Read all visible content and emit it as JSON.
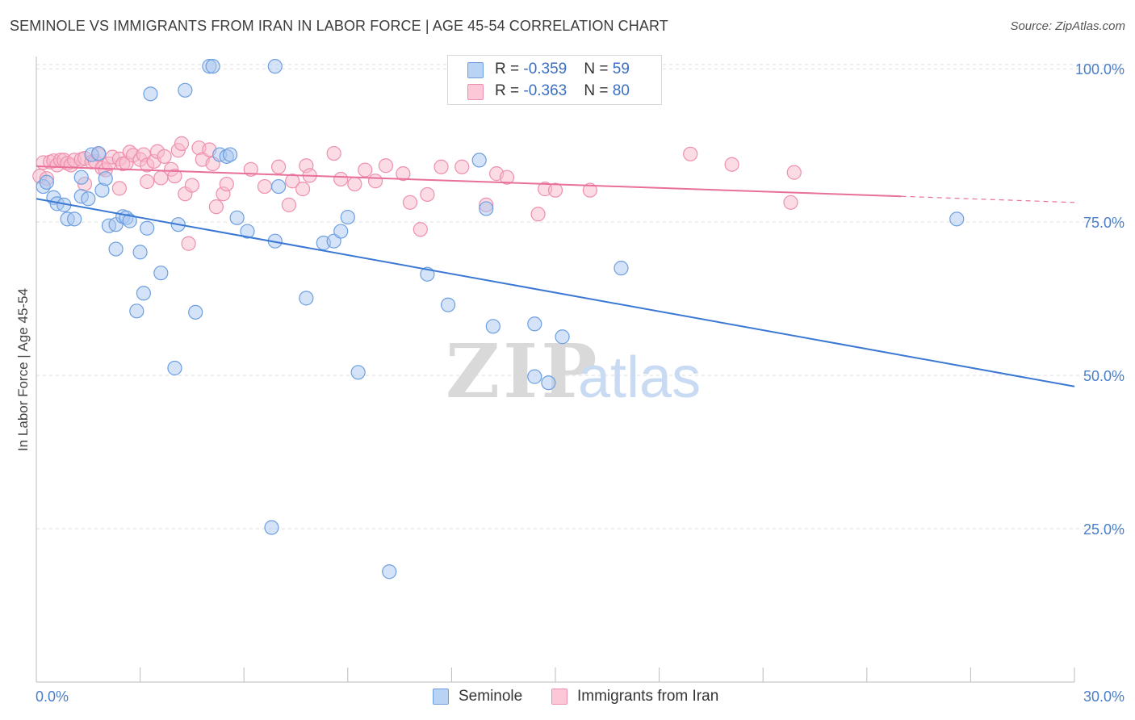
{
  "header": {
    "title": "SEMINOLE VS IMMIGRANTS FROM IRAN IN LABOR FORCE | AGE 45-54 CORRELATION CHART",
    "source": "Source: ZipAtlas.com"
  },
  "watermark": {
    "zip": "ZIP",
    "atlas": "atlas"
  },
  "legend": {
    "items": [
      {
        "r_label": "R = ",
        "r_value": "-0.359",
        "n_label": "N = ",
        "n_value": "59"
      },
      {
        "r_label": "R = ",
        "r_value": "-0.363",
        "n_label": "N = ",
        "n_value": "80"
      }
    ]
  },
  "colors": {
    "seminole_fill": "#a9c8f0",
    "seminole_stroke": "#6d9fe0",
    "seminole_line": "#3a78d4",
    "iran_fill": "#f7b9cc",
    "iran_stroke": "#ee8fae",
    "iran_line": "#e8709a",
    "tick_text": "#4a7fc8",
    "grid": "#dedede"
  },
  "chart_data": {
    "type": "scatter",
    "title": "SEMINOLE VS IMMIGRANTS FROM IRAN IN LABOR FORCE | AGE 45-54 CORRELATION CHART",
    "ylabel": "In Labor Force | Age 45-54",
    "xlim": [
      0,
      30
    ],
    "ylim": [
      0,
      102
    ],
    "x_ticks": [
      0,
      30
    ],
    "x_tick_labels": [
      "0.0%",
      "30.0%"
    ],
    "y_ticks": [
      25,
      50,
      75,
      100
    ],
    "y_tick_labels": [
      "25.0%",
      "50.0%",
      "75.0%",
      "100.0%"
    ],
    "grid": true,
    "legend_position": "top-center",
    "series": [
      {
        "name": "Seminole",
        "r": -0.359,
        "n": 59,
        "trend": {
          "x": [
            0,
            30
          ],
          "y": [
            78.8,
            48.2
          ]
        },
        "points": [
          [
            0.2,
            80.8
          ],
          [
            0.3,
            81.5
          ],
          [
            0.5,
            79.0
          ],
          [
            0.6,
            78.0
          ],
          [
            0.8,
            77.8
          ],
          [
            0.9,
            75.5
          ],
          [
            1.1,
            75.5
          ],
          [
            1.3,
            82.3
          ],
          [
            1.3,
            79.2
          ],
          [
            1.5,
            78.8
          ],
          [
            1.6,
            86.0
          ],
          [
            1.8,
            86.2
          ],
          [
            1.9,
            80.2
          ],
          [
            2.0,
            82.1
          ],
          [
            2.1,
            74.4
          ],
          [
            2.3,
            74.6
          ],
          [
            2.3,
            70.6
          ],
          [
            2.5,
            75.9
          ],
          [
            2.6,
            75.7
          ],
          [
            2.7,
            75.2
          ],
          [
            2.9,
            60.5
          ],
          [
            3.0,
            70.1
          ],
          [
            3.1,
            63.4
          ],
          [
            3.2,
            74.0
          ],
          [
            3.3,
            95.9
          ],
          [
            3.6,
            66.7
          ],
          [
            4.0,
            51.2
          ],
          [
            4.1,
            74.6
          ],
          [
            4.3,
            96.5
          ],
          [
            4.6,
            60.3
          ],
          [
            5.0,
            100.4
          ],
          [
            5.1,
            100.4
          ],
          [
            5.3,
            86.0
          ],
          [
            5.5,
            85.7
          ],
          [
            5.8,
            75.7
          ],
          [
            6.1,
            73.5
          ],
          [
            6.8,
            25.2
          ],
          [
            6.9,
            100.4
          ],
          [
            6.9,
            71.9
          ],
          [
            7.0,
            80.8
          ],
          [
            7.8,
            62.6
          ],
          [
            8.3,
            71.6
          ],
          [
            8.6,
            71.9
          ],
          [
            8.8,
            73.5
          ],
          [
            9.0,
            75.8
          ],
          [
            9.3,
            50.5
          ],
          [
            10.2,
            18.0
          ],
          [
            11.3,
            66.5
          ],
          [
            11.9,
            61.5
          ],
          [
            12.8,
            85.1
          ],
          [
            13.0,
            77.2
          ],
          [
            13.2,
            58.0
          ],
          [
            14.4,
            49.8
          ],
          [
            14.4,
            58.4
          ],
          [
            14.8,
            48.8
          ],
          [
            15.2,
            56.3
          ],
          [
            16.9,
            67.5
          ],
          [
            26.6,
            75.5
          ],
          [
            5.6,
            86.0
          ]
        ]
      },
      {
        "name": "Immigrants from Iran",
        "r": -0.363,
        "n": 80,
        "trend": {
          "x": [
            0,
            25
          ],
          "y": [
            84.1,
            79.2
          ]
        },
        "trend_dashed": {
          "x": [
            25,
            30
          ],
          "y": [
            79.2,
            78.2
          ]
        },
        "points": [
          [
            0.1,
            82.5
          ],
          [
            0.2,
            84.7
          ],
          [
            0.3,
            82.1
          ],
          [
            0.4,
            84.8
          ],
          [
            0.5,
            85.0
          ],
          [
            0.6,
            84.3
          ],
          [
            0.7,
            85.1
          ],
          [
            0.8,
            85.1
          ],
          [
            0.9,
            84.6
          ],
          [
            1.0,
            84.3
          ],
          [
            1.1,
            85.1
          ],
          [
            1.3,
            85.2
          ],
          [
            1.4,
            85.4
          ],
          [
            1.4,
            81.2
          ],
          [
            1.6,
            84.8
          ],
          [
            1.7,
            84.9
          ],
          [
            1.8,
            86.0
          ],
          [
            1.9,
            83.8
          ],
          [
            2.0,
            83.5
          ],
          [
            2.1,
            84.5
          ],
          [
            2.2,
            85.6
          ],
          [
            2.4,
            85.3
          ],
          [
            2.4,
            80.5
          ],
          [
            2.5,
            84.5
          ],
          [
            2.6,
            84.6
          ],
          [
            2.7,
            86.4
          ],
          [
            2.8,
            85.9
          ],
          [
            3.0,
            85.2
          ],
          [
            3.1,
            86.0
          ],
          [
            3.2,
            84.3
          ],
          [
            3.2,
            81.6
          ],
          [
            3.4,
            84.9
          ],
          [
            3.5,
            86.5
          ],
          [
            3.6,
            82.2
          ],
          [
            3.7,
            85.7
          ],
          [
            3.9,
            83.6
          ],
          [
            4.0,
            82.5
          ],
          [
            4.1,
            86.7
          ],
          [
            4.2,
            87.8
          ],
          [
            4.3,
            79.6
          ],
          [
            4.4,
            71.5
          ],
          [
            4.5,
            81.0
          ],
          [
            4.7,
            87.1
          ],
          [
            4.8,
            85.2
          ],
          [
            5.0,
            86.8
          ],
          [
            5.1,
            84.5
          ],
          [
            5.2,
            77.5
          ],
          [
            5.4,
            79.6
          ],
          [
            5.5,
            81.2
          ],
          [
            6.2,
            83.6
          ],
          [
            6.6,
            80.8
          ],
          [
            7.0,
            84.0
          ],
          [
            7.3,
            77.8
          ],
          [
            7.4,
            81.7
          ],
          [
            7.7,
            80.4
          ],
          [
            7.8,
            84.2
          ],
          [
            7.9,
            82.6
          ],
          [
            8.6,
            86.2
          ],
          [
            8.8,
            82.0
          ],
          [
            9.2,
            81.2
          ],
          [
            9.5,
            83.5
          ],
          [
            9.8,
            81.7
          ],
          [
            10.1,
            84.2
          ],
          [
            10.6,
            82.9
          ],
          [
            10.8,
            78.2
          ],
          [
            11.1,
            73.8
          ],
          [
            11.3,
            79.5
          ],
          [
            11.7,
            84.0
          ],
          [
            12.3,
            84.0
          ],
          [
            13.0,
            77.8
          ],
          [
            13.3,
            82.9
          ],
          [
            13.6,
            82.3
          ],
          [
            14.5,
            76.3
          ],
          [
            14.7,
            80.4
          ],
          [
            15.0,
            80.2
          ],
          [
            16.0,
            80.2
          ],
          [
            18.9,
            86.1
          ],
          [
            20.1,
            84.4
          ],
          [
            21.8,
            78.2
          ],
          [
            21.9,
            83.1
          ]
        ]
      }
    ],
    "bottom_legend": [
      "Seminole",
      "Immigrants from Iran"
    ]
  }
}
